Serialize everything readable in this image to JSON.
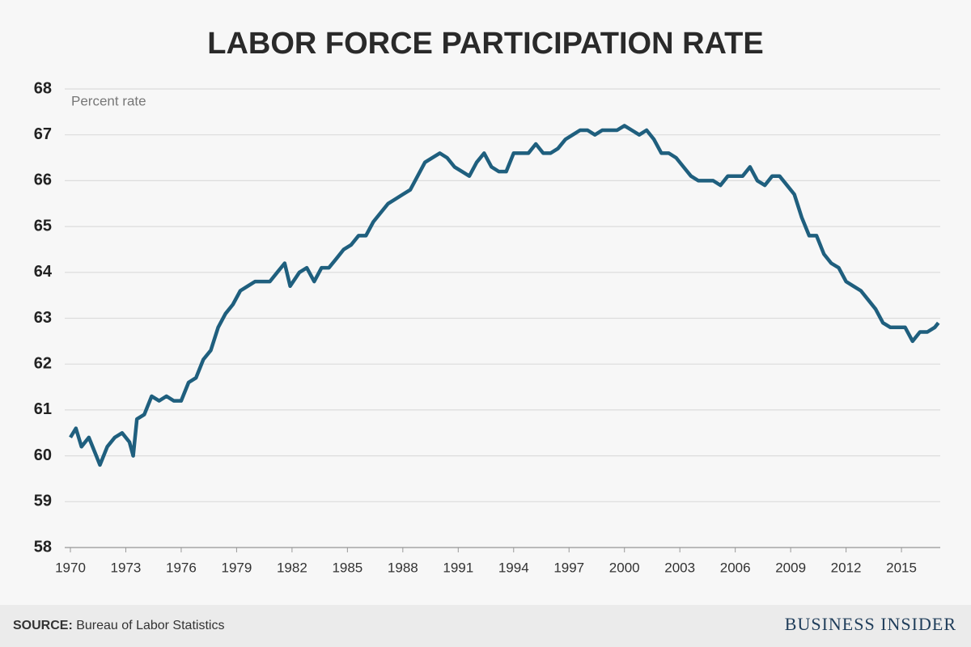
{
  "chart_data": {
    "type": "line",
    "title": "LABOR FORCE PARTICIPATION RATE",
    "y_label": "Percent rate",
    "color": "#1f5f7e",
    "grid": true,
    "xlim": [
      1970,
      2017.1
    ],
    "xticks": [
      1970,
      1973,
      1976,
      1979,
      1982,
      1985,
      1988,
      1991,
      1994,
      1997,
      2000,
      2003,
      2006,
      2009,
      2012,
      2015
    ],
    "ylim": [
      58,
      68
    ],
    "yticks": [
      58,
      59,
      60,
      61,
      62,
      63,
      64,
      65,
      66,
      67,
      68
    ],
    "x": [
      1970.0,
      1970.3,
      1970.6,
      1971.0,
      1971.4,
      1971.6,
      1972.0,
      1972.4,
      1972.8,
      1973.2,
      1973.4,
      1973.6,
      1974.0,
      1974.4,
      1974.8,
      1975.2,
      1975.6,
      1976.0,
      1976.4,
      1976.8,
      1977.2,
      1977.6,
      1978.0,
      1978.4,
      1978.8,
      1979.2,
      1979.6,
      1980.0,
      1980.4,
      1980.8,
      1981.2,
      1981.6,
      1981.9,
      1982.4,
      1982.8,
      1983.2,
      1983.6,
      1984.0,
      1984.4,
      1984.8,
      1985.2,
      1985.6,
      1986.0,
      1986.4,
      1986.8,
      1987.2,
      1987.6,
      1988.0,
      1988.4,
      1988.8,
      1989.2,
      1989.6,
      1990.0,
      1990.4,
      1990.8,
      1991.2,
      1991.6,
      1992.0,
      1992.4,
      1992.8,
      1993.2,
      1993.6,
      1994.0,
      1994.4,
      1994.8,
      1995.2,
      1995.6,
      1996.0,
      1996.4,
      1996.8,
      1997.2,
      1997.6,
      1998.0,
      1998.4,
      1998.8,
      1999.2,
      1999.6,
      2000.0,
      2000.4,
      2000.8,
      2001.2,
      2001.6,
      2002.0,
      2002.4,
      2002.8,
      2003.2,
      2003.6,
      2004.0,
      2004.4,
      2004.8,
      2005.2,
      2005.6,
      2006.0,
      2006.4,
      2006.8,
      2007.2,
      2007.6,
      2008.0,
      2008.4,
      2008.8,
      2009.2,
      2009.6,
      2010.0,
      2010.4,
      2010.8,
      2011.2,
      2011.6,
      2012.0,
      2012.4,
      2012.8,
      2013.2,
      2013.6,
      2014.0,
      2014.4,
      2014.8,
      2015.2,
      2015.6,
      2016.0,
      2016.4,
      2016.8,
      2017.0
    ],
    "values": [
      60.4,
      60.6,
      60.2,
      60.4,
      60.0,
      59.8,
      60.2,
      60.4,
      60.5,
      60.3,
      60.0,
      60.8,
      60.9,
      61.3,
      61.2,
      61.3,
      61.2,
      61.2,
      61.6,
      61.7,
      62.1,
      62.3,
      62.8,
      63.1,
      63.3,
      63.6,
      63.7,
      63.8,
      63.8,
      63.8,
      64.0,
      64.2,
      63.7,
      64.0,
      64.1,
      63.8,
      64.1,
      64.1,
      64.3,
      64.5,
      64.6,
      64.8,
      64.8,
      65.1,
      65.3,
      65.5,
      65.6,
      65.7,
      65.8,
      66.1,
      66.4,
      66.5,
      66.6,
      66.5,
      66.3,
      66.2,
      66.1,
      66.4,
      66.6,
      66.3,
      66.2,
      66.2,
      66.6,
      66.6,
      66.6,
      66.8,
      66.6,
      66.6,
      66.7,
      66.9,
      67.0,
      67.1,
      67.1,
      67.0,
      67.1,
      67.1,
      67.1,
      67.2,
      67.1,
      67.0,
      67.1,
      66.9,
      66.6,
      66.6,
      66.5,
      66.3,
      66.1,
      66.0,
      66.0,
      66.0,
      65.9,
      66.1,
      66.1,
      66.1,
      66.3,
      66.0,
      65.9,
      66.1,
      66.1,
      65.9,
      65.7,
      65.2,
      64.8,
      64.8,
      64.4,
      64.2,
      64.1,
      63.8,
      63.7,
      63.6,
      63.4,
      63.2,
      62.9,
      62.8,
      62.8,
      62.8,
      62.5,
      62.7,
      62.7,
      62.8,
      62.9
    ]
  },
  "footer": {
    "source_label": "SOURCE:",
    "source": "Bureau of Labor Statistics",
    "brand": "BUSINESS INSIDER"
  }
}
